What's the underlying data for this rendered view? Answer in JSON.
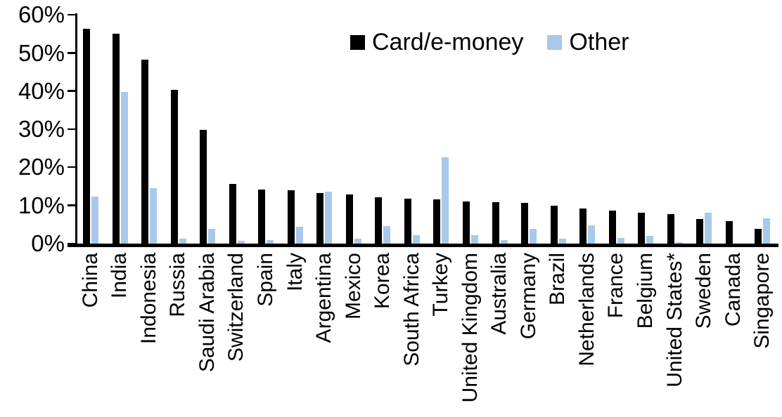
{
  "chart_data": {
    "type": "bar",
    "title": "",
    "xlabel": "",
    "ylabel": "",
    "ylim": [
      0,
      60
    ],
    "grid": false,
    "legend_position": "top-center",
    "yticks": [
      "0%",
      "10%",
      "20%",
      "30%",
      "40%",
      "50%",
      "60%"
    ],
    "ytick_values": [
      0,
      10,
      20,
      30,
      40,
      50,
      60
    ],
    "categories": [
      "China",
      "India",
      "Indonesia",
      "Russia",
      "Saudi Arabia",
      "Switzerland",
      "Spain",
      "Italy",
      "Argentina",
      "Mexico",
      "Korea",
      "South Africa",
      "Turkey",
      "United Kingdom",
      "Australia",
      "Germany",
      "Brazil",
      "Netherlands",
      "France",
      "Belgium",
      "United States*",
      "Sweden",
      "Canada",
      "Singapore"
    ],
    "series": [
      {
        "name": "Card/e-money",
        "color": "#000000",
        "values": [
          56.3,
          55.0,
          48.2,
          40.4,
          29.8,
          15.6,
          14.1,
          14.0,
          13.3,
          12.9,
          12.1,
          11.7,
          11.6,
          11.1,
          10.8,
          10.6,
          10.0,
          9.2,
          8.6,
          8.1,
          7.8,
          6.5,
          5.9,
          3.9
        ]
      },
      {
        "name": "Other",
        "color": "#A8C9E9",
        "values": [
          12.3,
          39.7,
          14.5,
          1.2,
          3.9,
          0.8,
          1.0,
          4.4,
          13.7,
          1.3,
          4.6,
          2.3,
          22.6,
          2.3,
          1.0,
          3.9,
          1.2,
          4.8,
          1.5,
          2.1,
          0.4,
          8.1,
          0.0,
          6.7
        ]
      }
    ]
  }
}
